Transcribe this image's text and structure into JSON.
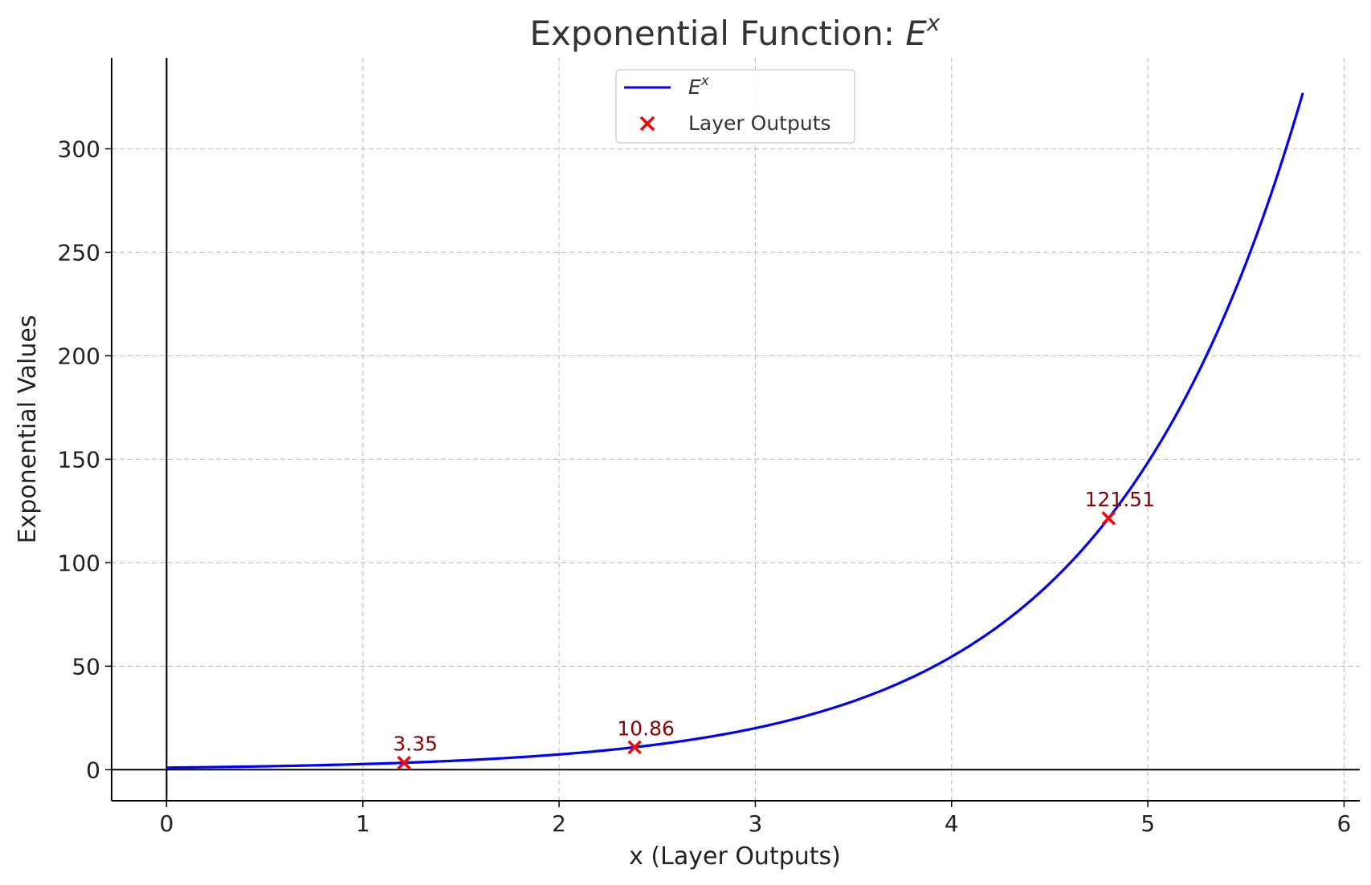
{
  "chart_data": {
    "type": "line",
    "title": "Exponential Function: ",
    "title_math_base": "E",
    "title_math_exp": "x",
    "xlabel": "x (Layer Outputs)",
    "ylabel": "Exponential Values",
    "xlim": [
      -0.28,
      6.08
    ],
    "ylim": [
      -15,
      344
    ],
    "x_ticks": [
      0,
      1,
      2,
      3,
      4,
      5,
      6
    ],
    "y_ticks": [
      0,
      50,
      100,
      150,
      200,
      250,
      300
    ],
    "grid": true,
    "legend_position": "top-center",
    "series": [
      {
        "name_base": "E",
        "name_exp": "x",
        "type": "line",
        "function": "exp",
        "x_range": [
          0,
          5.79
        ],
        "color": "#0000ff"
      },
      {
        "name": "Layer Outputs",
        "type": "scatter",
        "marker": "x",
        "color": "#ff0000",
        "label_color": "#8b0000",
        "points": [
          {
            "x": 1.21,
            "y": 3.35,
            "label": "3.35"
          },
          {
            "x": 2.385,
            "y": 10.86,
            "label": "10.86"
          },
          {
            "x": 4.8,
            "y": 121.51,
            "label": "121.51"
          }
        ]
      }
    ]
  }
}
